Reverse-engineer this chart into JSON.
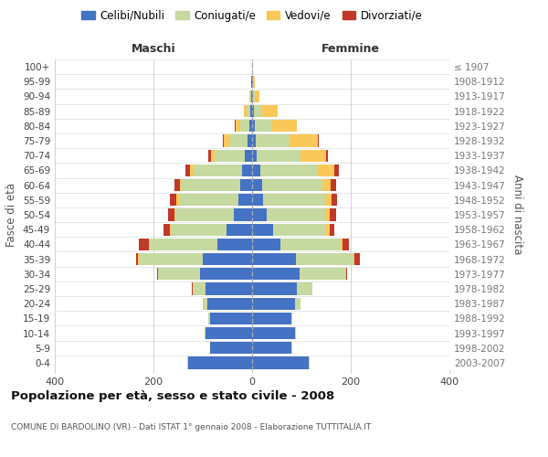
{
  "age_groups": [
    "100+",
    "95-99",
    "90-94",
    "85-89",
    "80-84",
    "75-79",
    "70-74",
    "65-69",
    "60-64",
    "55-59",
    "50-54",
    "45-49",
    "40-44",
    "35-39",
    "30-34",
    "25-29",
    "20-24",
    "15-19",
    "10-14",
    "5-9",
    "0-4"
  ],
  "birth_years": [
    "≤ 1907",
    "1908-1912",
    "1913-1917",
    "1918-1922",
    "1923-1927",
    "1928-1932",
    "1933-1937",
    "1938-1942",
    "1943-1947",
    "1948-1952",
    "1953-1957",
    "1958-1962",
    "1963-1967",
    "1968-1972",
    "1973-1977",
    "1978-1982",
    "1983-1987",
    "1988-1992",
    "1993-1997",
    "1998-2002",
    "2003-2007"
  ],
  "colors": {
    "celibi": "#4472C4",
    "coniugati": "#C6D9A0",
    "vedovi": "#FAC858",
    "divorziati": "#C0392B",
    "background": "#FFFFFF"
  },
  "maschi": {
    "celibi": [
      0,
      2,
      2,
      4,
      6,
      9,
      14,
      20,
      24,
      27,
      37,
      52,
      70,
      100,
      105,
      95,
      90,
      85,
      95,
      85,
      130
    ],
    "coniugati": [
      0,
      0,
      2,
      7,
      18,
      38,
      62,
      98,
      118,
      122,
      118,
      112,
      138,
      130,
      85,
      25,
      10,
      3,
      1,
      1,
      1
    ],
    "vedovi": [
      0,
      0,
      2,
      6,
      10,
      10,
      8,
      8,
      5,
      5,
      3,
      3,
      2,
      1,
      1,
      1,
      0,
      0,
      0,
      0,
      0
    ],
    "divorziati": [
      0,
      0,
      0,
      0,
      1,
      2,
      4,
      9,
      11,
      12,
      13,
      12,
      20,
      5,
      2,
      1,
      0,
      0,
      0,
      0,
      0
    ]
  },
  "femmine": {
    "celibi": [
      0,
      1,
      2,
      4,
      6,
      8,
      10,
      16,
      20,
      22,
      30,
      42,
      57,
      88,
      97,
      90,
      87,
      80,
      87,
      80,
      115
    ],
    "coniugati": [
      0,
      1,
      3,
      16,
      32,
      68,
      88,
      118,
      122,
      127,
      118,
      108,
      122,
      118,
      92,
      32,
      12,
      2,
      1,
      1,
      1
    ],
    "vedovi": [
      0,
      3,
      10,
      32,
      52,
      57,
      52,
      32,
      17,
      12,
      10,
      7,
      4,
      2,
      1,
      0,
      0,
      0,
      0,
      0,
      0
    ],
    "divorziati": [
      0,
      0,
      0,
      0,
      1,
      2,
      3,
      9,
      11,
      12,
      12,
      10,
      14,
      10,
      3,
      1,
      0,
      0,
      0,
      0,
      0
    ]
  },
  "xlim": 400,
  "title": "Popolazione per età, sesso e stato civile - 2008",
  "subtitle": "COMUNE DI BARDOLINO (VR) - Dati ISTAT 1° gennaio 2008 - Elaborazione TUTTITALIA.IT",
  "xlabel_left": "Maschi",
  "xlabel_right": "Femmine",
  "ylabel_left": "Fasce di età",
  "ylabel_right": "Anni di nascita",
  "legend_labels": [
    "Celibi/Nubili",
    "Coniugati/e",
    "Vedovi/e",
    "Divorziati/e"
  ]
}
